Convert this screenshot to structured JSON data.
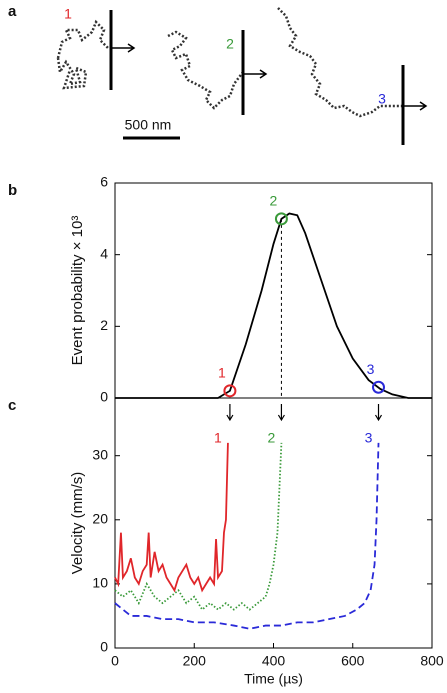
{
  "panel_a": {
    "label": "a",
    "trajectory_labels": [
      "1",
      "2",
      "3"
    ],
    "scale_bar": "500 nm"
  },
  "chart_data": [
    {
      "type": "line",
      "panel_label": "b",
      "ylabel": "Event probability × 10³",
      "color": "#000000",
      "x": [
        0,
        260,
        290,
        330,
        370,
        400,
        420,
        440,
        460,
        480,
        520,
        560,
        600,
        640,
        670,
        700,
        740,
        800
      ],
      "values": [
        0,
        0,
        0.2,
        1.5,
        3,
        4.3,
        5.0,
        5.15,
        5.1,
        4.6,
        3.3,
        2.0,
        1.1,
        0.5,
        0.25,
        0.1,
        0,
        0
      ],
      "xlim": [
        0,
        800
      ],
      "ylim": [
        0,
        6
      ],
      "yticks": [
        0,
        2,
        4,
        6
      ],
      "markers": [
        {
          "x": 290,
          "y": 0.2,
          "label": "1",
          "color": "#e0262a"
        },
        {
          "x": 420,
          "y": 5.0,
          "label": "2",
          "color": "#3a9a3a"
        },
        {
          "x": 665,
          "y": 0.3,
          "label": "3",
          "color": "#2a2ad8"
        }
      ]
    },
    {
      "type": "line",
      "panel_label": "c",
      "xlabel": "Time (µs)",
      "ylabel": "Velocity (mm/s)",
      "xlim": [
        0,
        800
      ],
      "xticks": [
        0,
        200,
        400,
        600,
        800
      ],
      "ylim": [
        0,
        39
      ],
      "yticks": [
        0,
        10,
        20,
        30
      ],
      "series": [
        {
          "name": "1",
          "color": "#e0262a",
          "dash": "solid",
          "x": [
            0,
            8,
            15,
            20,
            30,
            40,
            50,
            60,
            70,
            80,
            85,
            90,
            100,
            110,
            120,
            130,
            140,
            150,
            160,
            170,
            180,
            190,
            200,
            210,
            220,
            230,
            240,
            250,
            255,
            260,
            270,
            275,
            280,
            285
          ],
          "values": [
            11,
            10,
            18,
            11,
            12,
            14,
            11,
            10,
            12,
            13,
            18,
            11,
            15,
            12,
            13,
            11,
            10,
            9,
            11,
            12,
            13,
            11,
            10,
            11,
            9,
            10,
            11,
            10,
            17,
            11,
            12,
            18,
            20,
            32
          ]
        },
        {
          "name": "2",
          "color": "#3a9a3a",
          "dash": "dotted",
          "x": [
            0,
            20,
            40,
            60,
            80,
            100,
            120,
            140,
            160,
            180,
            200,
            220,
            240,
            260,
            280,
            300,
            320,
            340,
            360,
            380,
            390,
            400,
            410,
            415,
            420
          ],
          "values": [
            9,
            8,
            9,
            7,
            10,
            8,
            7,
            8,
            9,
            7,
            8,
            6,
            7,
            6,
            7,
            6,
            7,
            6,
            7,
            8,
            10,
            13,
            18,
            25,
            32
          ]
        },
        {
          "name": "3",
          "color": "#2a2ad8",
          "dash": "dashed",
          "x": [
            0,
            20,
            40,
            80,
            120,
            160,
            200,
            250,
            300,
            340,
            380,
            420,
            460,
            500,
            540,
            580,
            610,
            630,
            645,
            655,
            660,
            665
          ],
          "values": [
            7,
            6,
            5,
            5,
            4.5,
            4.5,
            4,
            4,
            3.5,
            3,
            3.5,
            3.5,
            4,
            4,
            4.5,
            5,
            6,
            7,
            9,
            13,
            20,
            32
          ]
        }
      ]
    }
  ]
}
